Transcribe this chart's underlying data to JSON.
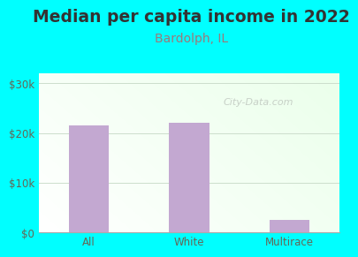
{
  "title": "Median per capita income in 2022",
  "subtitle": "Bardolph, IL",
  "categories": [
    "All",
    "White",
    "Multirace"
  ],
  "values": [
    21500,
    22000,
    2500
  ],
  "bar_color": "#c3a8d1",
  "title_fontsize": 13.5,
  "subtitle_fontsize": 10,
  "title_color": "#333333",
  "subtitle_color": "#9a7a7a",
  "tick_label_color": "#666655",
  "bg_outer": "#00FFFF",
  "ylim": [
    0,
    32000
  ],
  "yticks": [
    0,
    10000,
    20000,
    30000
  ],
  "ytick_labels": [
    "$0",
    "$10k",
    "$20k",
    "$30k"
  ],
  "watermark": "City-Data.com",
  "bg_grad_colors": [
    "#eefbee",
    "#f5fff8",
    "#e8f8e8"
  ]
}
